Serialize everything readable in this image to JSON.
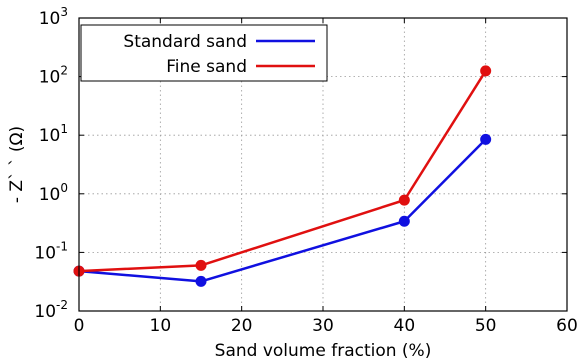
{
  "chart_data": {
    "type": "line",
    "xlabel": "Sand volume fraction (%)",
    "ylabel": "- Z` `  (Ω)",
    "xlim": [
      0,
      60
    ],
    "ylim": [
      0.01,
      1000
    ],
    "yscale": "log",
    "grid": true,
    "legend_position": "top-left",
    "x_ticks": [
      "0",
      "10",
      "20",
      "30",
      "40",
      "50",
      "60"
    ],
    "y_ticks": [
      {
        "base": "10",
        "exp": "-2"
      },
      {
        "base": "10",
        "exp": "-1"
      },
      {
        "base": "10",
        "exp": "0"
      },
      {
        "base": "10",
        "exp": "1"
      },
      {
        "base": "10",
        "exp": "2"
      },
      {
        "base": "10",
        "exp": "3"
      }
    ],
    "series": [
      {
        "name": "Standard sand",
        "color": "#1010e0",
        "x": [
          0,
          15,
          40,
          50
        ],
        "y": [
          0.048,
          0.032,
          0.34,
          8.5
        ]
      },
      {
        "name": "Fine sand",
        "color": "#e01010",
        "x": [
          0,
          15,
          40,
          50
        ],
        "y": [
          0.048,
          0.06,
          0.78,
          125
        ]
      }
    ]
  }
}
